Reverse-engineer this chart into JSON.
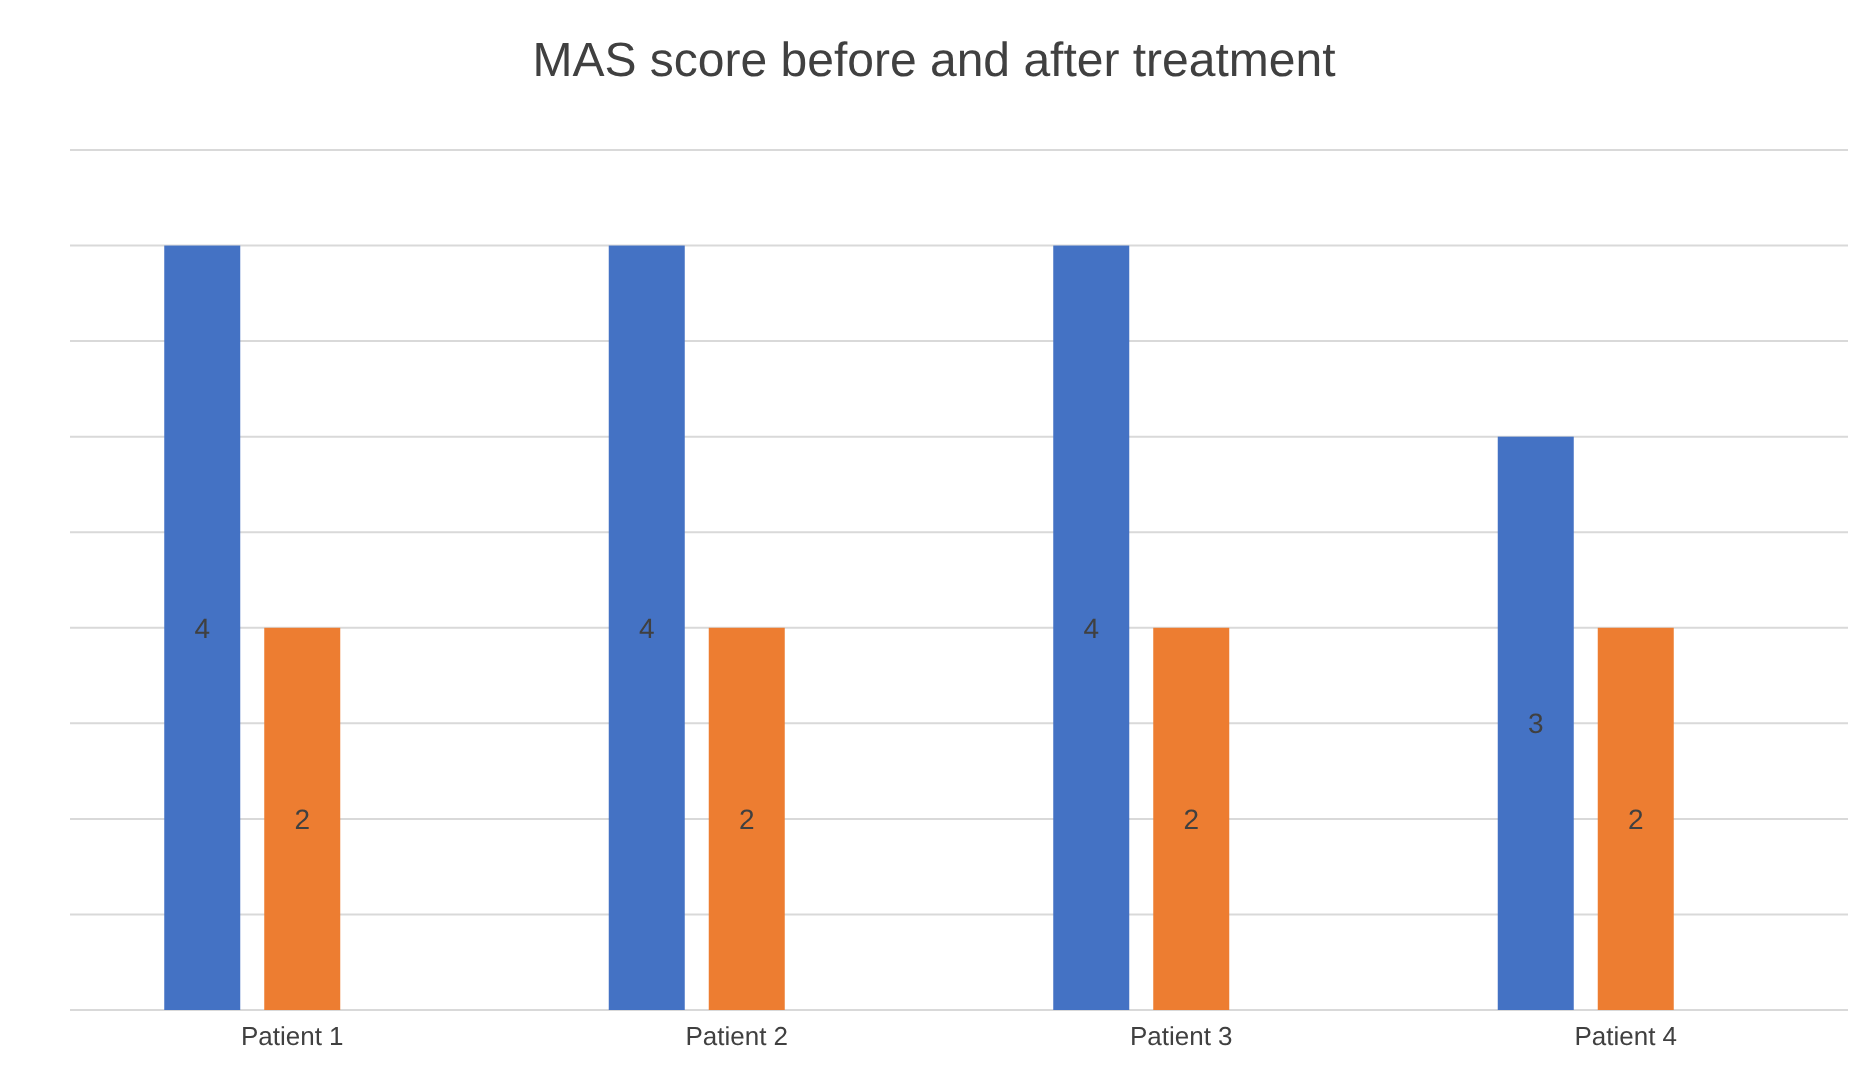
{
  "chart_data": {
    "type": "bar",
    "title": "MAS score before and after treatment",
    "categories": [
      "Patient 1",
      "Patient 2",
      "Patient 3",
      "Patient 4"
    ],
    "series": [
      {
        "color": "#4472c4",
        "values": [
          4,
          4,
          4,
          3
        ]
      },
      {
        "color": "#ed7d31",
        "values": [
          2,
          2,
          2,
          2
        ]
      }
    ],
    "ylim": [
      0,
      4.5
    ],
    "yticks": [
      {
        "value": 0,
        "label": null
      },
      {
        "value": 0.5,
        "label": null
      },
      {
        "value": 1,
        "label": null
      },
      {
        "value": 1.5,
        "label": null
      },
      {
        "value": 2,
        "label": null
      },
      {
        "value": 2.5,
        "label": null
      },
      {
        "value": 3,
        "label": null
      },
      {
        "value": 3.5,
        "label": null
      },
      {
        "value": 4,
        "label": null
      },
      {
        "value": 4.5,
        "label": null
      }
    ],
    "grid": "y",
    "tick_labels": "x",
    "data_labels": true
  }
}
